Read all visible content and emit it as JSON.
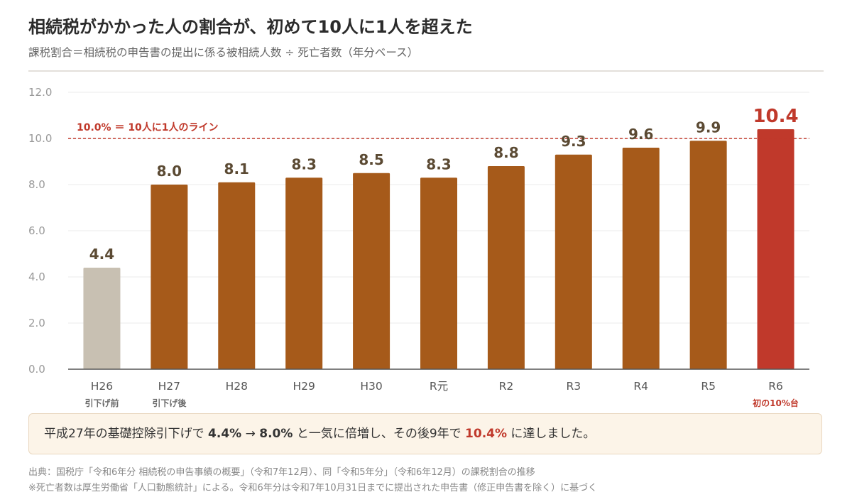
{
  "header": {
    "title": "相続税がかかった人の割合が、初めて10人に1人を超えた",
    "subtitle": "課税割合＝相続税の申告書の提出に係る被相続人数 ÷ 死亡者数（年分ベース）"
  },
  "chart_data": {
    "type": "bar",
    "categories": [
      "H26",
      "H27",
      "H28",
      "H29",
      "H30",
      "R元",
      "R2",
      "R3",
      "R4",
      "R5",
      "R6"
    ],
    "values": [
      4.4,
      8.0,
      8.1,
      8.3,
      8.5,
      8.3,
      8.8,
      9.3,
      9.6,
      9.9,
      10.4
    ],
    "value_labels": [
      "4.4",
      "8.0",
      "8.1",
      "8.3",
      "8.5",
      "8.3",
      "8.8",
      "9.3",
      "9.6",
      "9.9",
      "10.4"
    ],
    "sublabels": [
      "引下げ前",
      "引下げ後",
      "",
      "",
      "",
      "",
      "",
      "",
      "",
      "",
      "初の10%台"
    ],
    "ylim": [
      0,
      12
    ],
    "yticks": [
      "0.0",
      "2.0",
      "4.0",
      "6.0",
      "8.0",
      "10.0",
      "12.0"
    ],
    "grid": true,
    "reference_line": {
      "value": 10.0,
      "label": "10.0% ＝ 10人に1人のライン"
    },
    "colors": {
      "before": "#c8c0b2",
      "normal": "#a65a1a",
      "highlight": "#c0392b",
      "value_label": "#5b4a33",
      "grid": "#ebebeb",
      "axis_text": "#999999"
    }
  },
  "callout": {
    "prefix": "平成27年の基礎控除引下げで ",
    "from": "4.4%",
    "arrow": " → ",
    "to": "8.0%",
    "middle": " と一気に倍増し、その後9年で ",
    "final": "10.4%",
    "suffix": " に達しました。"
  },
  "footer": {
    "source": "出典：国税庁「令和6年分 相続税の申告事績の概要」（令和7年12月）、同「令和5年分」（令和6年12月）の課税割合の推移",
    "note": "※死亡者数は厚生労働省「人口動態統計」による。令和6年分は令和7年10月31日までに提出された申告書（修正申告書を除く）に基づく"
  }
}
